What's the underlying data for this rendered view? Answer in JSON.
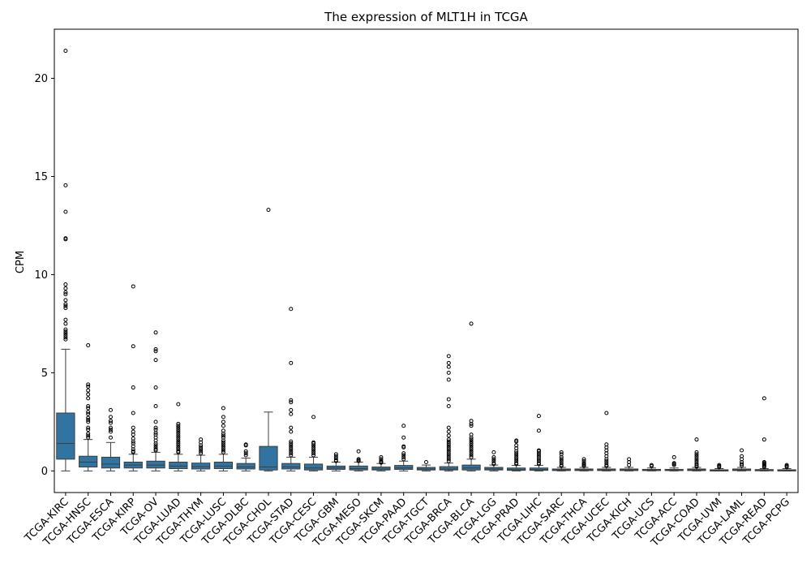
{
  "chart_data": {
    "type": "box",
    "title": "The expression of MLT1H in TCGA",
    "xlabel": "",
    "ylabel": "CPM",
    "ylim": [
      -1.1,
      22.5
    ],
    "yticks": [
      0,
      5,
      10,
      15,
      20
    ],
    "grid": false,
    "legend": "none",
    "box_color": "#3274a1",
    "categories": [
      "TCGA-KIRC",
      "TCGA-HNSC",
      "TCGA-ESCA",
      "TCGA-KIRP",
      "TCGA-OV",
      "TCGA-LUAD",
      "TCGA-THYM",
      "TCGA-LUSC",
      "TCGA-DLBC",
      "TCGA-CHOL",
      "TCGA-STAD",
      "TCGA-CESC",
      "TCGA-GBM",
      "TCGA-MESO",
      "TCGA-SKCM",
      "TCGA-PAAD",
      "TCGA-TGCT",
      "TCGA-BRCA",
      "TCGA-BLCA",
      "TCGA-LGG",
      "TCGA-PRAD",
      "TCGA-LIHC",
      "TCGA-SARC",
      "TCGA-THCA",
      "TCGA-UCEC",
      "TCGA-KICH",
      "TCGA-UCS",
      "TCGA-ACC",
      "TCGA-COAD",
      "TCGA-UVM",
      "TCGA-LAML",
      "TCGA-READ",
      "TCGA-PCPG"
    ],
    "boxes": [
      {
        "min": 0,
        "q1": 0.6,
        "median": 1.4,
        "q3": 2.95,
        "max": 6.2,
        "outliers": [
          21.4,
          14.55,
          13.2,
          11.85,
          11.8,
          9.5,
          9.3,
          9.1,
          9.0,
          8.7,
          8.5,
          8.4,
          8.3,
          7.7,
          7.5,
          7.2,
          7.1,
          7.0,
          6.9,
          6.8,
          6.7
        ]
      },
      {
        "min": 0,
        "q1": 0.2,
        "median": 0.45,
        "q3": 0.75,
        "max": 1.6,
        "outliers": [
          6.4,
          4.4,
          4.3,
          4.1,
          3.9,
          3.7,
          3.3,
          3.2,
          3.0,
          2.9,
          2.7,
          2.6,
          2.5,
          2.2,
          2.1,
          1.9,
          1.8,
          1.7
        ]
      },
      {
        "min": 0,
        "q1": 0.15,
        "median": 0.35,
        "q3": 0.7,
        "max": 1.45,
        "outliers": [
          3.1,
          2.75,
          2.55,
          2.45,
          2.2,
          2.1,
          2.0,
          1.7
        ]
      },
      {
        "min": 0,
        "q1": 0.15,
        "median": 0.3,
        "q3": 0.45,
        "max": 0.85,
        "outliers": [
          9.4,
          6.35,
          4.25,
          2.95,
          2.2,
          2.0,
          1.85,
          1.65,
          1.5,
          1.4,
          1.25,
          1.1,
          1.0,
          0.95
        ]
      },
      {
        "min": 0,
        "q1": 0.15,
        "median": 0.3,
        "q3": 0.5,
        "max": 0.95,
        "outliers": [
          7.05,
          6.2,
          6.1,
          5.65,
          4.25,
          3.3,
          2.5,
          2.2,
          2.1,
          1.95,
          1.85,
          1.7,
          1.55,
          1.4,
          1.3,
          1.2,
          1.1,
          1.05
        ]
      },
      {
        "min": 0,
        "q1": 0.12,
        "median": 0.25,
        "q3": 0.45,
        "max": 0.85,
        "outliers": [
          3.4,
          2.4,
          2.3,
          2.2,
          2.1,
          2.0,
          1.9,
          1.8,
          1.7,
          1.6,
          1.5,
          1.4,
          1.3,
          1.2,
          1.1,
          1.0,
          0.95
        ]
      },
      {
        "min": 0,
        "q1": 0.1,
        "median": 0.22,
        "q3": 0.4,
        "max": 0.8,
        "outliers": [
          1.6,
          1.45,
          1.3,
          1.2,
          1.1,
          1.0,
          0.9
        ]
      },
      {
        "min": 0,
        "q1": 0.12,
        "median": 0.25,
        "q3": 0.45,
        "max": 0.85,
        "outliers": [
          3.2,
          2.75,
          2.5,
          2.3,
          2.05,
          1.9,
          1.8,
          1.7,
          1.55,
          1.45,
          1.35,
          1.25,
          1.15,
          1.05,
          0.95
        ]
      },
      {
        "min": 0,
        "q1": 0.1,
        "median": 0.2,
        "q3": 0.38,
        "max": 0.65,
        "outliers": [
          1.35,
          1.3,
          1.0,
          0.9,
          0.8
        ]
      },
      {
        "min": 0,
        "q1": 0.05,
        "median": 0.2,
        "q3": 1.25,
        "max": 3.0,
        "outliers": [
          13.3
        ]
      },
      {
        "min": 0,
        "q1": 0.1,
        "median": 0.2,
        "q3": 0.38,
        "max": 0.7,
        "outliers": [
          8.25,
          5.5,
          3.6,
          3.5,
          3.1,
          2.9,
          2.2,
          2.0,
          1.5,
          1.4,
          1.3,
          1.2,
          1.1,
          1.0,
          0.9,
          0.8
        ]
      },
      {
        "min": 0,
        "q1": 0.05,
        "median": 0.15,
        "q3": 0.35,
        "max": 0.7,
        "outliers": [
          2.75,
          1.45,
          1.4,
          1.3,
          1.2,
          1.1,
          1.0,
          0.9,
          0.8
        ]
      },
      {
        "min": 0,
        "q1": 0.08,
        "median": 0.15,
        "q3": 0.25,
        "max": 0.45,
        "outliers": [
          0.85,
          0.75,
          0.65,
          0.55,
          0.5
        ]
      },
      {
        "min": 0,
        "q1": 0.05,
        "median": 0.12,
        "q3": 0.25,
        "max": 0.45,
        "outliers": [
          1.0,
          0.6,
          0.55,
          0.5
        ]
      },
      {
        "min": 0,
        "q1": 0.05,
        "median": 0.1,
        "q3": 0.2,
        "max": 0.38,
        "outliers": [
          0.7,
          0.6,
          0.5,
          0.45,
          0.42
        ]
      },
      {
        "min": 0,
        "q1": 0.08,
        "median": 0.15,
        "q3": 0.28,
        "max": 0.5,
        "outliers": [
          2.3,
          1.7,
          1.25,
          1.2,
          0.9,
          0.8,
          0.7,
          0.6
        ]
      },
      {
        "min": 0,
        "q1": 0.05,
        "median": 0.1,
        "q3": 0.18,
        "max": 0.3,
        "outliers": [
          0.45
        ]
      },
      {
        "min": 0,
        "q1": 0.05,
        "median": 0.1,
        "q3": 0.22,
        "max": 0.4,
        "outliers": [
          5.85,
          5.5,
          5.3,
          5.0,
          4.65,
          3.65,
          3.3,
          2.2,
          2.0,
          1.8,
          1.6,
          1.5,
          1.4,
          1.3,
          1.2,
          1.1,
          1.0,
          0.9,
          0.8,
          0.7,
          0.6,
          0.5
        ]
      },
      {
        "min": 0,
        "q1": 0.05,
        "median": 0.15,
        "q3": 0.3,
        "max": 0.6,
        "outliers": [
          7.5,
          2.55,
          2.4,
          2.3,
          1.85,
          1.7,
          1.6,
          1.5,
          1.4,
          1.3,
          1.2,
          1.1,
          1.0,
          0.9,
          0.8,
          0.7
        ]
      },
      {
        "min": 0,
        "q1": 0.05,
        "median": 0.1,
        "q3": 0.18,
        "max": 0.3,
        "outliers": [
          0.95,
          0.7,
          0.6,
          0.5,
          0.4,
          0.35
        ]
      },
      {
        "min": 0,
        "q1": 0.03,
        "median": 0.07,
        "q3": 0.15,
        "max": 0.28,
        "outliers": [
          1.55,
          1.5,
          1.3,
          1.15,
          1.0,
          0.9,
          0.8,
          0.7,
          0.6,
          0.5,
          0.4,
          0.35
        ]
      },
      {
        "min": 0,
        "q1": 0.03,
        "median": 0.07,
        "q3": 0.15,
        "max": 0.28,
        "outliers": [
          2.8,
          2.05,
          1.05,
          1.0,
          0.9,
          0.8,
          0.7,
          0.6,
          0.5,
          0.4,
          0.35
        ]
      },
      {
        "min": 0,
        "q1": 0.02,
        "median": 0.05,
        "q3": 0.1,
        "max": 0.18,
        "outliers": [
          0.95,
          0.85,
          0.7,
          0.6,
          0.5,
          0.4,
          0.3,
          0.25
        ]
      },
      {
        "min": 0,
        "q1": 0.02,
        "median": 0.05,
        "q3": 0.1,
        "max": 0.18,
        "outliers": [
          0.6,
          0.5,
          0.4,
          0.35,
          0.3,
          0.25
        ]
      },
      {
        "min": 0,
        "q1": 0.02,
        "median": 0.05,
        "q3": 0.1,
        "max": 0.18,
        "outliers": [
          2.95,
          1.35,
          1.2,
          1.05,
          0.9,
          0.75,
          0.6,
          0.5,
          0.4,
          0.3,
          0.25
        ]
      },
      {
        "min": 0,
        "q1": 0.02,
        "median": 0.05,
        "q3": 0.1,
        "max": 0.18,
        "outliers": [
          0.6,
          0.45,
          0.3
        ]
      },
      {
        "min": 0,
        "q1": 0.02,
        "median": 0.04,
        "q3": 0.08,
        "max": 0.15,
        "outliers": [
          0.3,
          0.25
        ]
      },
      {
        "min": 0,
        "q1": 0.02,
        "median": 0.04,
        "q3": 0.08,
        "max": 0.15,
        "outliers": [
          0.7,
          0.4,
          0.35,
          0.3
        ]
      },
      {
        "min": 0,
        "q1": 0.02,
        "median": 0.05,
        "q3": 0.1,
        "max": 0.18,
        "outliers": [
          1.6,
          0.95,
          0.85,
          0.75,
          0.65,
          0.55,
          0.45,
          0.35,
          0.28,
          0.22
        ]
      },
      {
        "min": 0,
        "q1": 0.01,
        "median": 0.03,
        "q3": 0.06,
        "max": 0.12,
        "outliers": [
          0.3,
          0.25,
          0.2
        ]
      },
      {
        "min": 0,
        "q1": 0.02,
        "median": 0.05,
        "q3": 0.1,
        "max": 0.18,
        "outliers": [
          1.05,
          0.75,
          0.6,
          0.45,
          0.35,
          0.28
        ]
      },
      {
        "min": 0,
        "q1": 0.01,
        "median": 0.03,
        "q3": 0.07,
        "max": 0.12,
        "outliers": [
          3.7,
          1.6,
          0.45,
          0.4,
          0.35,
          0.3,
          0.25,
          0.2
        ]
      },
      {
        "min": 0,
        "q1": 0.01,
        "median": 0.03,
        "q3": 0.06,
        "max": 0.12,
        "outliers": [
          0.3,
          0.25,
          0.2
        ]
      }
    ]
  }
}
